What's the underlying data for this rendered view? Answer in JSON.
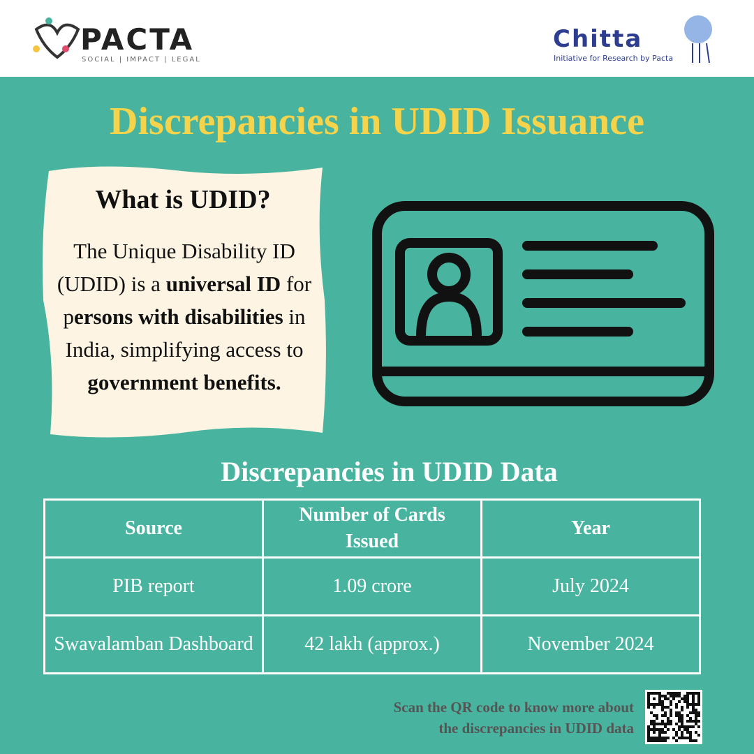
{
  "header": {
    "left_logo": {
      "name": "PACTA",
      "tagline": "SOCIAL | IMPACT | LEGAL"
    },
    "right_logo": {
      "name": "Chitta",
      "tagline": "Initiative for Research by Pacta"
    }
  },
  "title": "Discrepancies in UDID Issuance",
  "info_box": {
    "heading": "What is UDID?",
    "segments": [
      {
        "text": "The Unique Disability ID (UDID) is a ",
        "bold": false
      },
      {
        "text": "universal ID",
        "bold": true
      },
      {
        "text": " for p",
        "bold": false
      },
      {
        "text": "ersons with disabilities",
        "bold": true
      },
      {
        "text": " in India, simplifying access to ",
        "bold": false
      },
      {
        "text": "government benefits.",
        "bold": true
      }
    ]
  },
  "table": {
    "title": "Discrepancies in UDID Data",
    "header": [
      "Source",
      "Number of Cards Issued",
      "Year"
    ],
    "rows": [
      [
        "PIB report",
        "1.09 crore",
        "July 2024"
      ],
      [
        "Swavalamban Dashboard",
        "42 lakh (approx.)",
        "November 2024"
      ]
    ]
  },
  "footer": {
    "qr_text": [
      "Scan the QR code to know more about",
      "the discrepancies in UDID data"
    ]
  }
}
